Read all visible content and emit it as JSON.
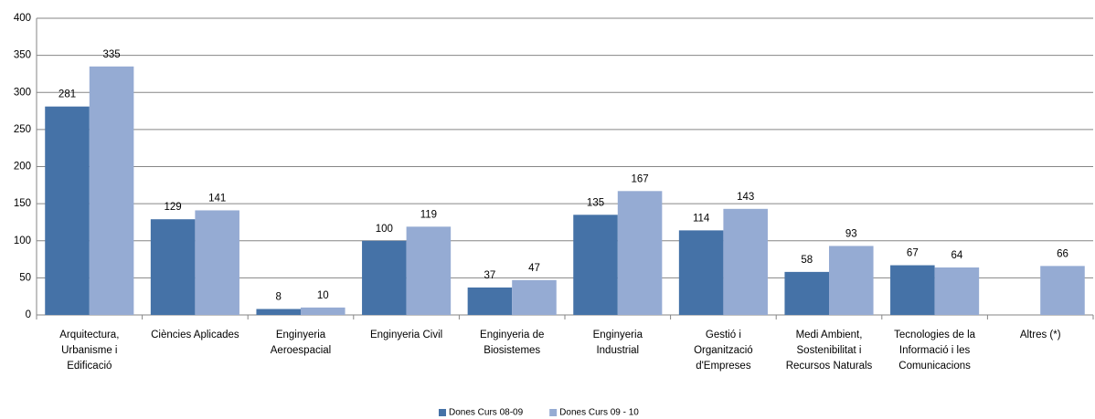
{
  "chart_data": {
    "type": "bar",
    "categories": [
      "Arquitectura,\nUrbanisme i\nEdificació",
      "Ciències Aplicades",
      "Enginyeria\nAeroespacial",
      "Enginyeria Civil",
      "Enginyeria de\nBiosistemes",
      "Enginyeria\nIndustrial",
      "Gestió i\nOrganització\nd'Empreses",
      "Medi Ambient,\nSostenibilitat i\nRecursos Naturals",
      "Tecnologies de la\nInformació i les\nComunicacions",
      "Altres (*)"
    ],
    "series": [
      {
        "name": "Dones Curs 08-09",
        "color": "#4572a7",
        "values": [
          281,
          129,
          8,
          100,
          37,
          135,
          114,
          58,
          67,
          null
        ]
      },
      {
        "name": "Dones Curs 09 - 10",
        "color": "#95abd3",
        "values": [
          335,
          141,
          10,
          119,
          47,
          167,
          143,
          93,
          64,
          66
        ]
      }
    ],
    "ylim": [
      0,
      400
    ],
    "yticks": [
      0,
      50,
      100,
      150,
      200,
      250,
      300,
      350,
      400
    ],
    "grid": true,
    "legend": "bottom"
  }
}
